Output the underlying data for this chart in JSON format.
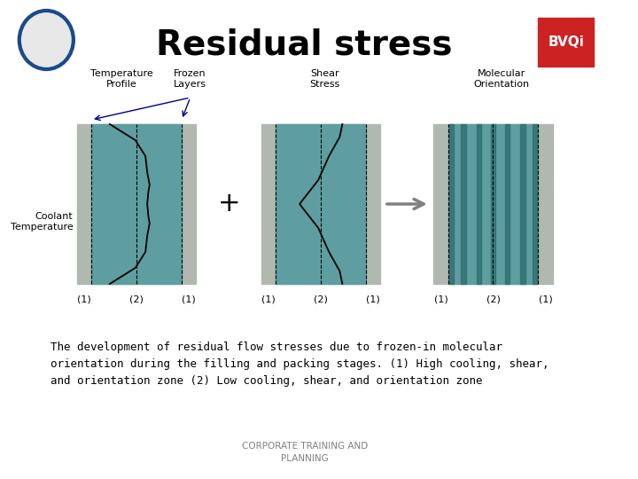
{
  "title": "Residual stress",
  "title_fontsize": 28,
  "title_fontweight": "bold",
  "bg_color": "#f0f0f0",
  "teal_color": "#5f9ea0",
  "teal_dark": "#4a8a8c",
  "gray_strip": "#b0b8b0",
  "body_text": "The development of residual flow stresses due to frozen-in molecular\norientation during the filling and packing stages. (1) High cooling, shear,\nand orientation zone (2) Low cooling, shear, and orientation zone",
  "footer_text": "CORPORATE TRAINING AND\nPLANNING",
  "diagram_labels": {
    "temp_profile": "Temperature\nProfile",
    "frozen_layers": "Frozen\nLayers",
    "shear_stress": "Shear\nStress",
    "mol_orient": "Molecular\nOrientation",
    "coolant": "Coolant\nTemperature"
  },
  "zone_labels_1": [
    "(1)",
    "(2)",
    "(1)"
  ],
  "zone_labels_2": [
    "(1)",
    "(2)",
    "(1)"
  ],
  "zone_labels_3": [
    "(1)",
    "(2)",
    "(1)"
  ]
}
